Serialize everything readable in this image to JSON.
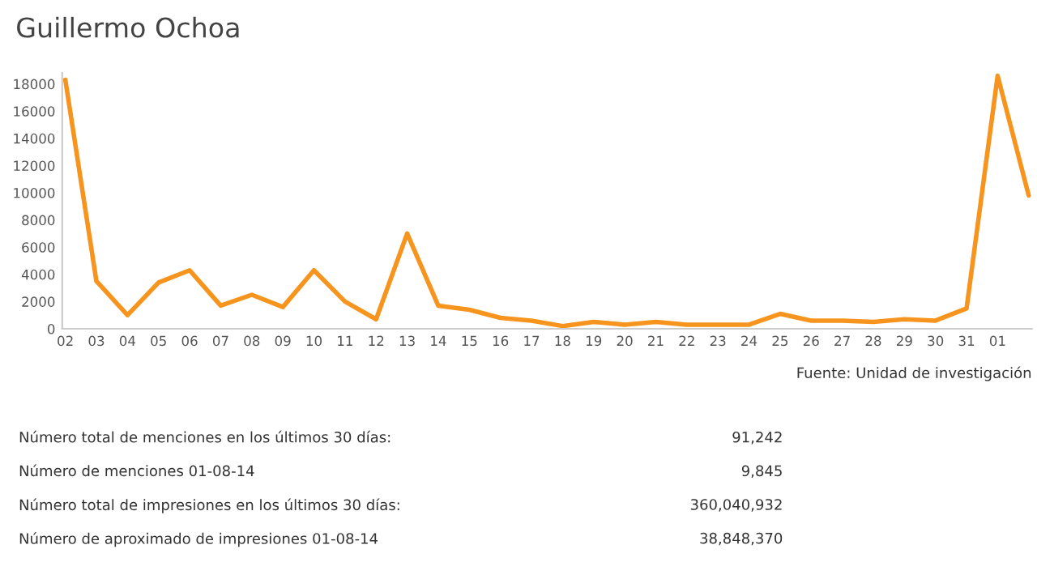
{
  "chart_data": {
    "type": "line",
    "title": "Guillermo Ochoa",
    "categories": [
      "02",
      "03",
      "04",
      "05",
      "06",
      "07",
      "08",
      "09",
      "10",
      "11",
      "12",
      "13",
      "14",
      "15",
      "16",
      "17",
      "18",
      "19",
      "20",
      "21",
      "22",
      "23",
      "24",
      "25",
      "26",
      "27",
      "28",
      "29",
      "30",
      "31",
      "01",
      null
    ],
    "series": [
      {
        "color": "#f7941d",
        "values": [
          18300,
          3500,
          1000,
          3400,
          4300,
          1700,
          2500,
          1600,
          4300,
          2000,
          700,
          7000,
          1700,
          1400,
          800,
          600,
          200,
          500,
          300,
          500,
          300,
          300,
          300,
          1100,
          600,
          600,
          500,
          700,
          600,
          1500,
          18600,
          9800
        ]
      }
    ],
    "ylim": [
      0,
      18800
    ],
    "yticks": [
      0,
      2000,
      4000,
      6000,
      8000,
      10000,
      12000,
      14000,
      16000,
      18000
    ],
    "grid": false,
    "legend": false,
    "marker": "none",
    "line_style": "solid",
    "annotations": [
      "Fuente: Unidad de investigación",
      "Número total de menciones en los últimos 30 días:",
      "91,242",
      "Número de menciones 01-08-14",
      "9,845",
      "Número total de impresiones en los últimos 30 días:",
      "360,040,932",
      "Número de aproximado de impresiones 01-08-14",
      "38,848,370"
    ]
  }
}
